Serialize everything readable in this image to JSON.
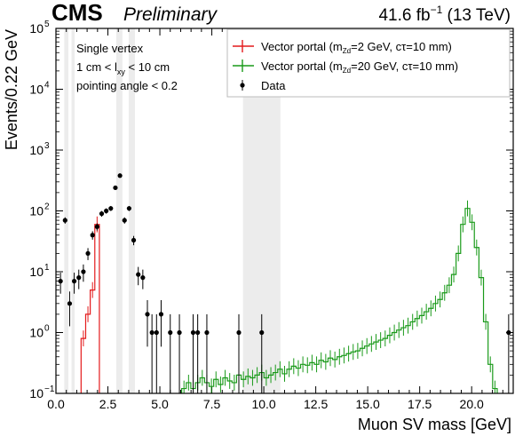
{
  "header": {
    "experiment": "CMS",
    "status": "Preliminary",
    "lumi_value": "41.6 fb",
    "lumi_exp": "−1",
    "lumi_energy": "(13 TeV)"
  },
  "annotations": [
    "Single vertex",
    "1 cm < l",
    "< 10 cm",
    "pointing angle < 0.2"
  ],
  "annotation_sub": "xy",
  "chart_data": {
    "type": "histogram",
    "xlabel": "Muon SV mass [GeV]",
    "ylabel": "Events/0.22 GeV",
    "xlim": [
      0,
      22
    ],
    "ylim": [
      0.1,
      100000
    ],
    "yscale": "log",
    "xticks": [
      "0.0",
      "2.5",
      "5.0",
      "7.5",
      "10.0",
      "12.5",
      "15.0",
      "17.5",
      "20.0"
    ],
    "xtick_values": [
      0,
      2.5,
      5,
      7.5,
      10,
      12.5,
      15,
      17.5,
      20
    ],
    "yticks": [
      "10",
      "10",
      "10",
      "10",
      "10",
      "10",
      "10"
    ],
    "ytick_exps": [
      "−1",
      "0",
      "1",
      "2",
      "3",
      "4",
      "5"
    ],
    "ytick_values": [
      0.1,
      1,
      10,
      100,
      1000,
      10000,
      100000
    ],
    "masked_regions": [
      [
        0.4,
        0.6
      ],
      [
        0.75,
        0.9
      ],
      [
        2.9,
        3.2
      ],
      [
        3.5,
        3.8
      ],
      [
        9.0,
        10.8
      ]
    ],
    "legend": {
      "position": "top-right",
      "entries": [
        {
          "label": "Vector portal (m",
          "sub": "Zd",
          "rest": "=2 GeV, cτ=10 mm)",
          "color": "#e41a1c"
        },
        {
          "label": "Vector portal (m",
          "sub": "Zd",
          "rest": "=20 GeV, cτ=10 mm)",
          "color": "#1a9a1a"
        },
        {
          "label": "Data",
          "color": "#000000"
        }
      ]
    },
    "series": [
      {
        "name": "Vector portal (mZd=2 GeV, cτ=10 mm)",
        "kind": "step",
        "color": "#e41a1c",
        "bin_width": 0.22,
        "x": [
          1.32,
          1.54,
          1.76,
          1.98
        ],
        "y": [
          0.8,
          2.0,
          5.0,
          60
        ]
      },
      {
        "name": "Vector portal (mZd=20 GeV, cτ=10 mm)",
        "kind": "step",
        "color": "#1a9a1a",
        "bin_width": 0.22,
        "x": [
          6.16,
          6.38,
          6.6,
          6.82,
          7.04,
          7.26,
          7.48,
          7.7,
          7.92,
          8.14,
          8.36,
          8.58,
          8.8,
          9.02,
          9.24,
          9.46,
          9.68,
          9.9,
          10.12,
          10.34,
          10.56,
          10.78,
          11.0,
          11.22,
          11.44,
          11.66,
          11.88,
          12.1,
          12.32,
          12.54,
          12.76,
          12.98,
          13.2,
          13.42,
          13.64,
          13.86,
          14.08,
          14.3,
          14.52,
          14.74,
          14.96,
          15.18,
          15.4,
          15.62,
          15.84,
          16.06,
          16.28,
          16.5,
          16.72,
          16.94,
          17.16,
          17.38,
          17.6,
          17.82,
          18.04,
          18.26,
          18.48,
          18.7,
          18.92,
          19.14,
          19.36,
          19.58,
          19.8,
          20.02,
          20.24,
          20.46,
          20.68,
          20.9,
          21.12
        ],
        "y": [
          0.12,
          0.15,
          0.12,
          0.15,
          0.18,
          0.15,
          0.13,
          0.17,
          0.14,
          0.18,
          0.16,
          0.15,
          0.2,
          0.17,
          0.19,
          0.18,
          0.2,
          0.22,
          0.18,
          0.2,
          0.22,
          0.25,
          0.21,
          0.25,
          0.28,
          0.26,
          0.3,
          0.29,
          0.32,
          0.3,
          0.35,
          0.33,
          0.38,
          0.36,
          0.4,
          0.42,
          0.45,
          0.48,
          0.5,
          0.55,
          0.6,
          0.65,
          0.7,
          0.75,
          0.8,
          0.9,
          1.0,
          1.1,
          1.2,
          1.3,
          1.5,
          1.7,
          1.9,
          2.2,
          2.5,
          3.0,
          3.5,
          4.5,
          6.0,
          9.0,
          20,
          60,
          110,
          65,
          25,
          8.0,
          1.5,
          0.3,
          0.12
        ]
      },
      {
        "name": "Data",
        "kind": "errorbar",
        "color": "#000000",
        "x": [
          0.22,
          0.44,
          0.66,
          0.88,
          1.1,
          1.32,
          1.54,
          1.76,
          1.98,
          2.2,
          2.42,
          2.64,
          2.86,
          3.08,
          3.3,
          3.52,
          3.74,
          3.96,
          4.18,
          4.4,
          4.62,
          4.84,
          5.06,
          5.5,
          5.94,
          6.6,
          6.82,
          7.26,
          8.8,
          9.9,
          21.78
        ],
        "y": [
          7,
          70,
          3,
          7,
          8,
          10,
          20,
          40,
          55,
          90,
          100,
          110,
          240,
          380,
          70,
          110,
          33,
          9,
          8,
          2,
          1,
          1,
          2,
          1,
          1,
          1,
          1,
          1,
          1,
          1,
          1
        ]
      }
    ]
  }
}
